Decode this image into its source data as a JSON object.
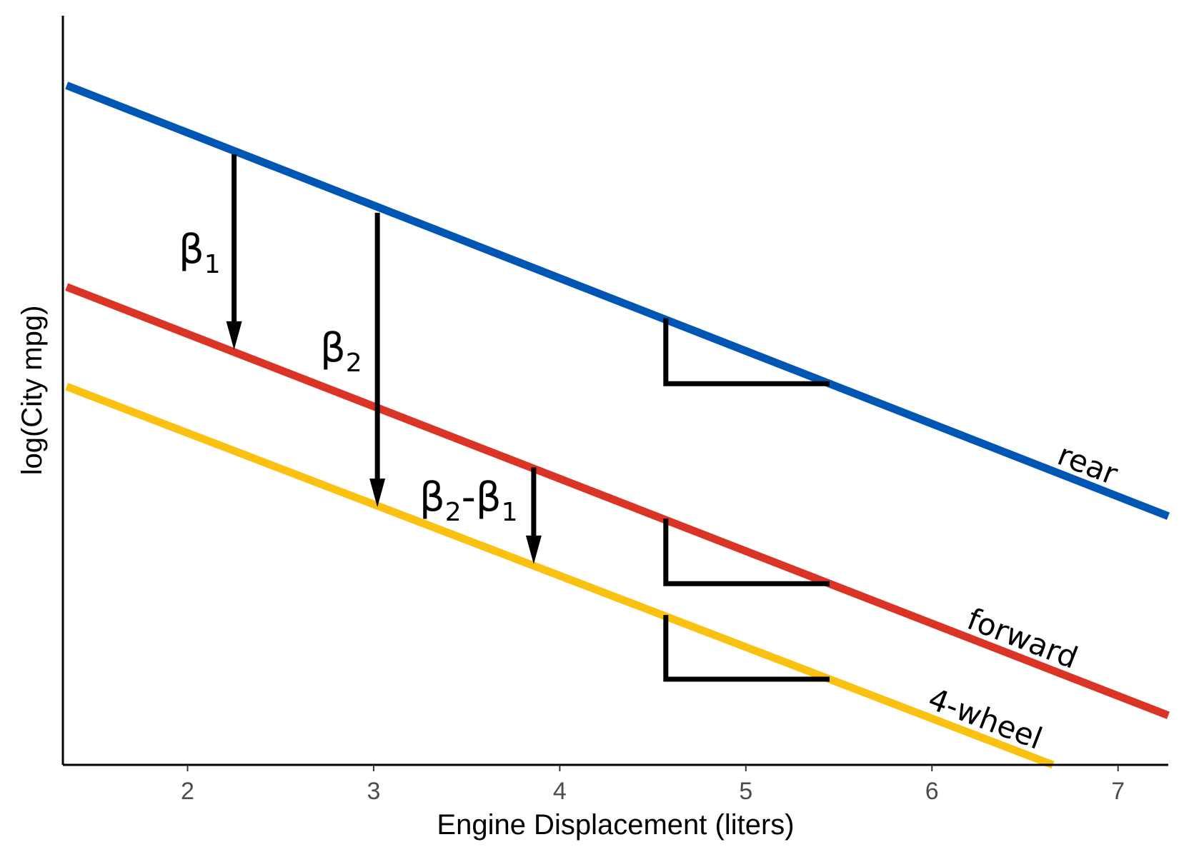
{
  "chart_data": {
    "type": "line",
    "xlabel": "Engine Displacement (liters)",
    "ylabel": "log(City mpg)",
    "xlim": [
      1.33,
      7.27
    ],
    "ylim": [
      0,
      1
    ],
    "x_ticks": [
      "2",
      "3",
      "4",
      "5",
      "6",
      "7"
    ],
    "y_ticks_shown": false,
    "grid": false,
    "series": [
      {
        "name": "rear",
        "color": "#0056b3",
        "x": [
          1.35,
          7.27
        ],
        "y": [
          0.907,
          0.332
        ]
      },
      {
        "name": "forward",
        "color": "#d93426",
        "x": [
          1.35,
          7.27
        ],
        "y": [
          0.638,
          0.066
        ]
      },
      {
        "name": "4-wheel",
        "color": "#fbc110",
        "x": [
          1.35,
          6.65
        ],
        "y": [
          0.505,
          0.0
        ]
      }
    ],
    "annotations": [
      {
        "label_base": "β",
        "label_sub": "1",
        "kind": "arrow",
        "x": 2.25,
        "y_from": 0.815,
        "y_to": 0.554
      },
      {
        "label_base": "β",
        "label_sub": "2",
        "kind": "arrow",
        "x": 3.02,
        "y_from": 0.737,
        "y_to": 0.344
      },
      {
        "label_base": "β",
        "label_sub": "2",
        "label_mid": "-",
        "label_base2": "β",
        "label_sub2": "1",
        "kind": "arrow",
        "x": 3.86,
        "y_from": 0.397,
        "y_to": 0.268
      }
    ],
    "slope_triangles": [
      {
        "series": "rear",
        "x_from": 4.57,
        "x_to": 5.45
      },
      {
        "series": "forward",
        "x_from": 4.57,
        "x_to": 5.45
      },
      {
        "series": "4-wheel",
        "x_from": 4.57,
        "x_to": 5.45
      }
    ]
  }
}
